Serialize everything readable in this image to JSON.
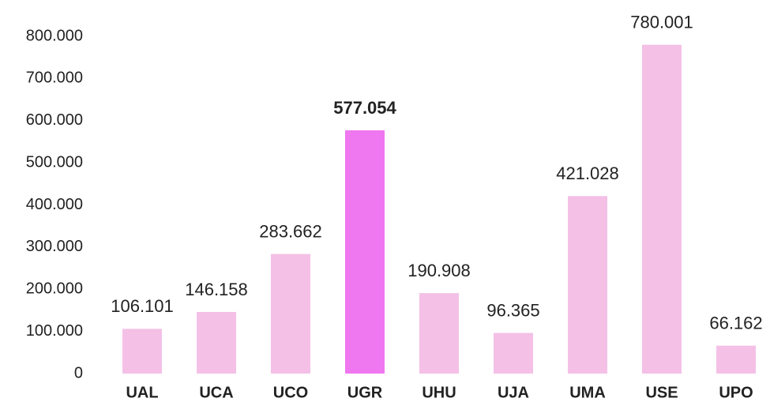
{
  "chart_data": {
    "type": "bar",
    "categories": [
      "UAL",
      "UCA",
      "UCO",
      "UGR",
      "UHU",
      "UJA",
      "UMA",
      "USE",
      "UPO"
    ],
    "values": [
      106101,
      146158,
      283662,
      577054,
      190908,
      96365,
      421028,
      780001,
      66162
    ],
    "value_labels": [
      "106.101",
      "146.158",
      "283.662",
      "577.054",
      "190.908",
      "96.365",
      "421.028",
      "780.001",
      "66.162"
    ],
    "color": "#f4c0e6",
    "colors": [
      "#f4c0e6",
      "#f4c0e6",
      "#f4c0e6",
      "#ef77ef",
      "#f4c0e6",
      "#f4c0e6",
      "#f4c0e6",
      "#f4c0e6",
      "#f4c0e6"
    ],
    "ylim": [
      0,
      800000
    ],
    "yticks": [
      0,
      {
        "value": 100000,
        "label": "100.000"
      },
      {
        "value": 200000,
        "label": "200.000"
      },
      {
        "value": 300000,
        "label": "300.000"
      },
      {
        "value": 400000,
        "label": "400.000"
      },
      {
        "value": 500000,
        "label": "500.000"
      },
      {
        "value": 600000,
        "label": "600.000"
      },
      {
        "value": 700000,
        "label": "700.000"
      },
      {
        "value": 800000,
        "label": "800.000"
      }
    ],
    "grid": false
  }
}
